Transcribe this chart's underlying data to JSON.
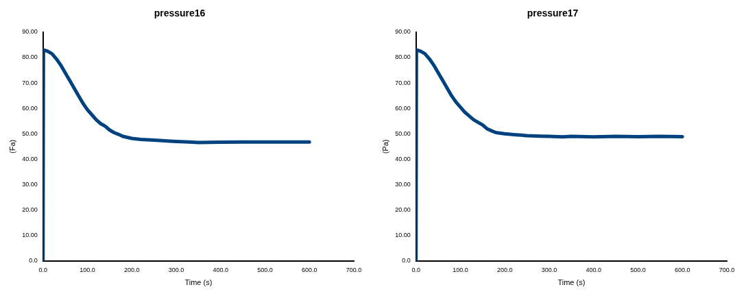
{
  "chart_data": [
    {
      "type": "line",
      "title": "pressure16",
      "xlabel": "Time (s)",
      "ylabel": "(Fa)",
      "legend": false,
      "grid": false,
      "marker": "none",
      "line_style": "solid",
      "x": [
        0,
        1,
        10,
        20,
        30,
        40,
        50,
        60,
        70,
        80,
        90,
        100,
        110,
        120,
        130,
        140,
        150,
        160,
        170,
        180,
        200,
        220,
        250,
        280,
        300,
        330,
        350,
        400,
        450,
        500,
        550,
        600
      ],
      "series": [
        {
          "color": "#00427f",
          "values": [
            0,
            83,
            82.5,
            81.5,
            79.5,
            77,
            74,
            71,
            68,
            65,
            62,
            59.5,
            57.5,
            55.5,
            54,
            53,
            51.5,
            50.5,
            49.8,
            49,
            48.2,
            47.8,
            47.5,
            47.2,
            47,
            46.8,
            46.6,
            46.7,
            46.8,
            46.8,
            46.8,
            46.8
          ]
        }
      ],
      "xlim": [
        0,
        700
      ],
      "xticks": [
        {
          "value": 0,
          "label": "0.0"
        },
        {
          "value": 100,
          "label": "100.0"
        },
        {
          "value": 200,
          "label": "200.0"
        },
        {
          "value": 300,
          "label": "300.0"
        },
        {
          "value": 400,
          "label": "400.0"
        },
        {
          "value": 500,
          "label": "500.0"
        },
        {
          "value": 600,
          "label": "600.0"
        },
        {
          "value": 700,
          "label": "700.0"
        }
      ],
      "ylim": [
        0,
        90
      ],
      "yticks": [
        {
          "value": 0,
          "label": "0.0"
        },
        {
          "value": 10,
          "label": "10.00"
        },
        {
          "value": 20,
          "label": "20.00"
        },
        {
          "value": 30,
          "label": "30.00"
        },
        {
          "value": 40,
          "label": "40.00"
        },
        {
          "value": 50,
          "label": "50.00"
        },
        {
          "value": 60,
          "label": "60.00"
        },
        {
          "value": 70,
          "label": "70.00"
        },
        {
          "value": 80,
          "label": "80.00"
        },
        {
          "value": 90,
          "label": "90.00"
        }
      ]
    },
    {
      "type": "line",
      "title": "pressure17",
      "xlabel": "Time (s)",
      "ylabel": "(Pa)",
      "legend": false,
      "grid": false,
      "marker": "none",
      "line_style": "solid",
      "x": [
        0,
        1,
        10,
        20,
        30,
        40,
        50,
        60,
        70,
        80,
        90,
        100,
        110,
        120,
        130,
        140,
        150,
        160,
        170,
        180,
        200,
        220,
        250,
        280,
        300,
        330,
        350,
        400,
        450,
        500,
        550,
        600
      ],
      "series": [
        {
          "color": "#00427f",
          "values": [
            0,
            83,
            82.5,
            81.5,
            79.5,
            77,
            74,
            71,
            68,
            65,
            62.5,
            60.5,
            58.5,
            57,
            55.5,
            54.5,
            53.5,
            52,
            51.2,
            50.5,
            50,
            49.7,
            49.3,
            49.1,
            49,
            48.8,
            49,
            48.8,
            49,
            48.9,
            49,
            48.9
          ]
        }
      ],
      "xlim": [
        0,
        700
      ],
      "xticks": [
        {
          "value": 0,
          "label": "0.0"
        },
        {
          "value": 100,
          "label": "100.0"
        },
        {
          "value": 200,
          "label": "200.0"
        },
        {
          "value": 300,
          "label": "300.0"
        },
        {
          "value": 400,
          "label": "400.0"
        },
        {
          "value": 500,
          "label": "500.0"
        },
        {
          "value": 600,
          "label": "600.0"
        },
        {
          "value": 700,
          "label": "700.0"
        }
      ],
      "ylim": [
        0,
        90
      ],
      "yticks": [
        {
          "value": 0,
          "label": "0.0"
        },
        {
          "value": 10,
          "label": "10.00"
        },
        {
          "value": 20,
          "label": "20.00"
        },
        {
          "value": 30,
          "label": "30.00"
        },
        {
          "value": 40,
          "label": "40.00"
        },
        {
          "value": 50,
          "label": "50.00"
        },
        {
          "value": 60,
          "label": "60.00"
        },
        {
          "value": 70,
          "label": "70.00"
        },
        {
          "value": 80,
          "label": "80.00"
        },
        {
          "value": 90,
          "label": "90.00"
        }
      ]
    }
  ]
}
